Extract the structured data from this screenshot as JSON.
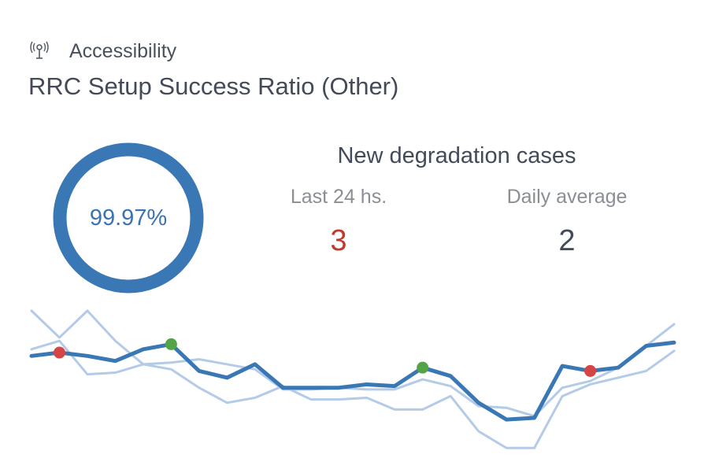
{
  "category": {
    "icon": "antenna-icon",
    "label": "Accessibility"
  },
  "kpi": {
    "title": "RRC Setup Success Ratio (Other)",
    "value_label": "99.97%",
    "value": 99.97
  },
  "degradation": {
    "title": "New degradation cases",
    "last_24h_label": "Last 24 hs.",
    "last_24h_value": "3",
    "daily_average_label": "Daily average",
    "daily_average_value": "2"
  },
  "colors": {
    "accent": "#3a78b5",
    "band": "#b4cbe8",
    "degraded_point": "#d64545",
    "improved_point": "#53a447",
    "red_value": "#c0392b"
  },
  "chart_data": {
    "type": "line",
    "series": [
      {
        "role": "value",
        "values": [
          79,
          77,
          79,
          82,
          75,
          72,
          88,
          92,
          84,
          98,
          98,
          98,
          96,
          97,
          86,
          91,
          107,
          117,
          116,
          85,
          88,
          86,
          73,
          71
        ]
      },
      {
        "role": "upper-band",
        "values": [
          52,
          68,
          52,
          70,
          84,
          83,
          81,
          84,
          87,
          99,
          99,
          98,
          99,
          99,
          93,
          97,
          109,
          110,
          115,
          98,
          94,
          86,
          73,
          60
        ]
      },
      {
        "role": "lower-band",
        "values": [
          75,
          70,
          90,
          89,
          84,
          87,
          98,
          107,
          104,
          97,
          105,
          105,
          104,
          111,
          111,
          103,
          124,
          134,
          134,
          103,
          96,
          92,
          88,
          76
        ]
      }
    ],
    "degraded_points": [
      1,
      20
    ],
    "improved_points": [
      5,
      14
    ],
    "ylim": [
      45,
      140
    ],
    "grid": false,
    "legend": false
  }
}
